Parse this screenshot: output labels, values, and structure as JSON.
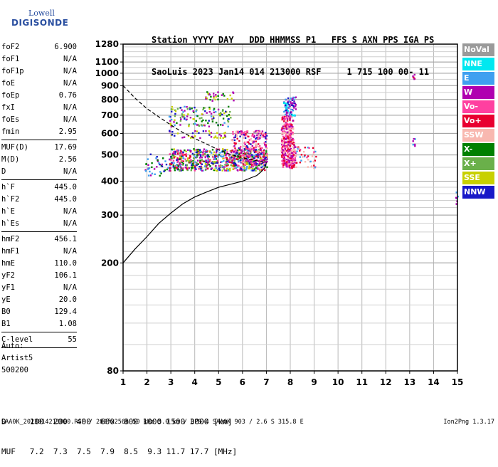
{
  "logo": {
    "line1": "Lowell",
    "line2": "DIGISONDE"
  },
  "header": {
    "line1": "Station YYYY DAY   DDD HHMMSS P1   FFS S AXN PPS IGA PS",
    "line2": "SaoLuis 2023 Jan14 014 213000 RSF     1 715 100 00- 11"
  },
  "params": [
    {
      "label": "foF2",
      "value": "6.900"
    },
    {
      "label": "foF1",
      "value": "N/A"
    },
    {
      "label": "foF1p",
      "value": "N/A"
    },
    {
      "label": "foE",
      "value": "N/A"
    },
    {
      "label": "foEp",
      "value": "0.76"
    },
    {
      "label": "fxI",
      "value": "N/A"
    },
    {
      "label": "foEs",
      "value": "N/A"
    },
    {
      "label": "fmin",
      "value": "2.95"
    },
    {
      "sep": true
    },
    {
      "label": "MUF(D)",
      "value": "17.69"
    },
    {
      "label": "M(D)",
      "value": "2.56"
    },
    {
      "label": "D",
      "value": "N/A"
    },
    {
      "sep": true
    },
    {
      "label": "h`F",
      "value": "445.0"
    },
    {
      "label": "h`F2",
      "value": "445.0"
    },
    {
      "label": "h`E",
      "value": "N/A"
    },
    {
      "label": "h`Es",
      "value": "N/A"
    },
    {
      "sep": true
    },
    {
      "label": "hmF2",
      "value": "456.1"
    },
    {
      "label": "hmF1",
      "value": "N/A"
    },
    {
      "label": "hmE",
      "value": "110.0"
    },
    {
      "label": "yF2",
      "value": "106.1"
    },
    {
      "label": "yF1",
      "value": "N/A"
    },
    {
      "label": "yE",
      "value": "20.0"
    },
    {
      "label": "B0",
      "value": "129.4"
    },
    {
      "label": "B1",
      "value": "1.08"
    },
    {
      "sep": true
    },
    {
      "label": "C-level",
      "value": "55"
    },
    {
      "sep": true
    }
  ],
  "autoscale": {
    "line1": "Auto:",
    "line2": "Artist5",
    "line3": "500200"
  },
  "legend": [
    {
      "label": "NoVal",
      "color": "#9a9a9a"
    },
    {
      "label": "NNE",
      "color": "#00e8f0"
    },
    {
      "label": "E",
      "color": "#3fa0f0"
    },
    {
      "label": "W",
      "color": "#b000b0"
    },
    {
      "label": "Vo-",
      "color": "#ff40a0"
    },
    {
      "label": "Vo+",
      "color": "#e80030"
    },
    {
      "label": "SSW",
      "color": "#f8b8b0"
    },
    {
      "label": "X-",
      "color": "#008000"
    },
    {
      "label": "X+",
      "color": "#6ab04a"
    },
    {
      "label": "SSE",
      "color": "#c8d000"
    },
    {
      "label": "NNW",
      "color": "#1818c8"
    }
  ],
  "dtable": {
    "line1": "D     100  200  400  600  800 1000 1500 3000 [km]",
    "line2": "MUF   7.2  7.3  7.5  7.9  8.5  9.3 11.7 17.7 [MHz]"
  },
  "footer": {
    "left": "SAA0K_2023014213000.RSF / 280fx256h 50 kHz 5.0 km / DPS-4 SAA0K 903 / 2.6 S 315.8 E",
    "right": "Ion2Png 1.3.17"
  },
  "chart_data": {
    "type": "scatter",
    "xlim": [
      1,
      15
    ],
    "ylim": [
      80,
      1280
    ],
    "x_ticks": [
      1,
      2,
      3,
      4,
      5,
      6,
      7,
      8,
      9,
      10,
      11,
      12,
      13,
      14,
      15
    ],
    "y_ticks": [
      80,
      200,
      300,
      400,
      500,
      600,
      700,
      800,
      900,
      1000,
      1100,
      1280
    ],
    "y_scale": "log",
    "grid": true,
    "clusters": [
      {
        "x": [
          2.9,
          7.0
        ],
        "y": [
          440,
          530
        ],
        "count": 700,
        "colors": [
          "#1818c8",
          "#b000b0",
          "#ff40a0",
          "#e80030",
          "#3fa0f0",
          "#c8d000",
          "#008000",
          "#6ab04a"
        ]
      },
      {
        "x": [
          5.5,
          7.0
        ],
        "y": [
          460,
          620
        ],
        "count": 250,
        "colors": [
          "#ff40a0",
          "#e80030",
          "#b000b0",
          "#1818c8",
          "#f8b8b0"
        ]
      },
      {
        "x": [
          7.6,
          8.2
        ],
        "y": [
          450,
          560
        ],
        "count": 220,
        "colors": [
          "#ff40a0",
          "#e80030",
          "#f8b8b0",
          "#b000b0"
        ]
      },
      {
        "x": [
          7.6,
          8.1
        ],
        "y": [
          560,
          700
        ],
        "count": 150,
        "colors": [
          "#ff40a0",
          "#e80030",
          "#f8b8b0",
          "#b000b0"
        ]
      },
      {
        "x": [
          7.7,
          8.2
        ],
        "y": [
          700,
          830
        ],
        "count": 80,
        "colors": [
          "#3fa0f0",
          "#00e8f0",
          "#1818c8",
          "#b000b0"
        ]
      },
      {
        "x": [
          2.9,
          5.5
        ],
        "y": [
          640,
          760
        ],
        "count": 130,
        "colors": [
          "#c8d000",
          "#008000",
          "#b000b0",
          "#6ab04a",
          "#1818c8",
          "#3fa0f0"
        ]
      },
      {
        "x": [
          2.9,
          5.4
        ],
        "y": [
          580,
          620
        ],
        "count": 40,
        "colors": [
          "#b000b0",
          "#1818c8",
          "#c8d000"
        ]
      },
      {
        "x": [
          4.4,
          5.6
        ],
        "y": [
          790,
          860
        ],
        "count": 30,
        "colors": [
          "#c8d000",
          "#008000",
          "#b000b0"
        ]
      },
      {
        "x": [
          8.2,
          9.1
        ],
        "y": [
          450,
          540
        ],
        "count": 40,
        "colors": [
          "#ff40a0",
          "#e80030",
          "#f8b8b0",
          "#3fa0f0"
        ]
      },
      {
        "x": [
          1.9,
          2.9
        ],
        "y": [
          420,
          510
        ],
        "count": 40,
        "colors": [
          "#1818c8",
          "#b000b0",
          "#3fa0f0",
          "#008000"
        ]
      },
      {
        "x": [
          13.1,
          13.2
        ],
        "y": [
          540,
          580
        ],
        "count": 6,
        "colors": [
          "#b000b0",
          "#3fa0f0"
        ]
      },
      {
        "x": [
          13.1,
          13.2
        ],
        "y": [
          940,
          1010
        ],
        "count": 6,
        "colors": [
          "#b000b0",
          "#e80030"
        ]
      },
      {
        "x": [
          14.9,
          15.0
        ],
        "y": [
          330,
          380
        ],
        "count": 6,
        "colors": [
          "#b000b0",
          "#3fa0f0"
        ]
      }
    ],
    "profile_curve": {
      "x": [
        1.0,
        1.5,
        2.0,
        2.5,
        3.0,
        3.5,
        4.0,
        4.5,
        5.0,
        5.5,
        6.0,
        6.3,
        6.6,
        6.8,
        6.95,
        7.0
      ],
      "y": [
        200,
        225,
        250,
        280,
        305,
        330,
        350,
        365,
        380,
        390,
        400,
        410,
        420,
        435,
        450,
        470
      ]
    },
    "virtual_trace": {
      "x": [
        1.0,
        1.5,
        2.0,
        2.5,
        3.0,
        3.5,
        4.0,
        4.5,
        5.0,
        5.5,
        6.0,
        6.5,
        6.8,
        7.0
      ],
      "y": [
        900,
        810,
        740,
        690,
        645,
        605,
        575,
        548,
        522,
        502,
        488,
        478,
        472,
        468
      ]
    }
  }
}
